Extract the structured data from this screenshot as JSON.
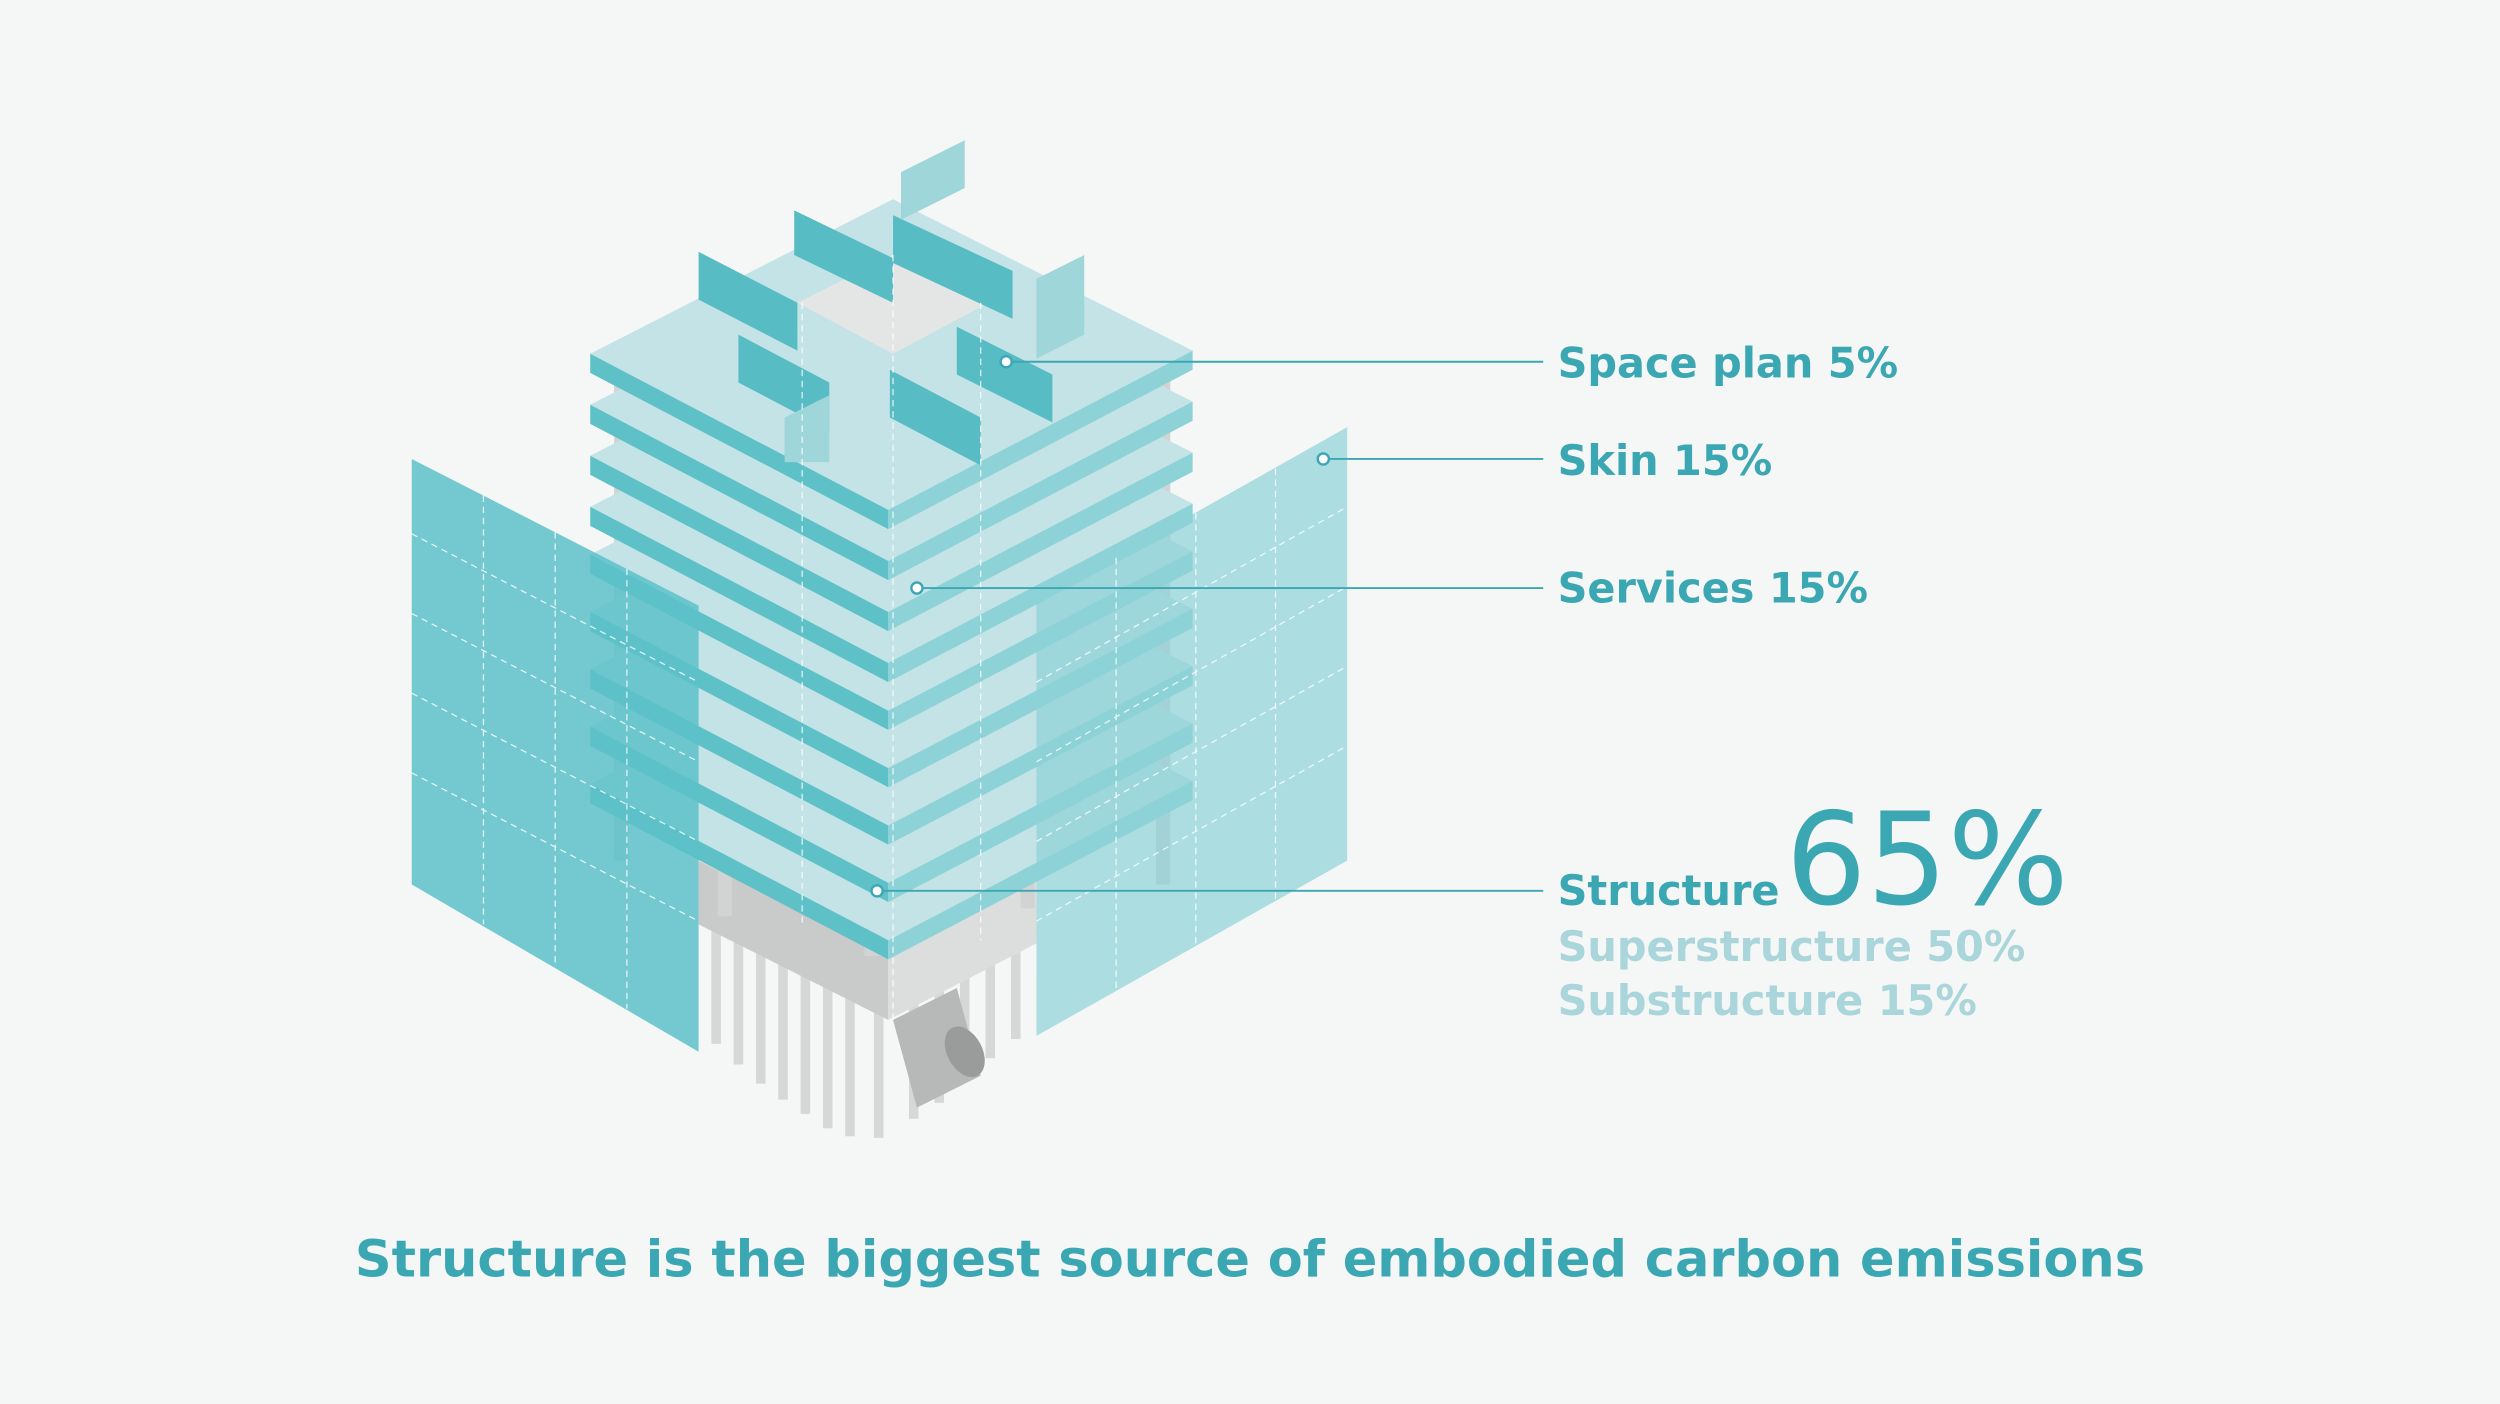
{
  "labels": [
    {
      "text": "Space plan 5%"
    },
    {
      "text": "Skin 15%"
    },
    {
      "text": "Services 15%"
    }
  ],
  "structure": {
    "label": "Structure",
    "value": "65%",
    "parts": [
      "Superstructure 50%",
      "Substructure 15%"
    ]
  },
  "caption": "Structure is the biggest source of embodied carbon emissions"
}
